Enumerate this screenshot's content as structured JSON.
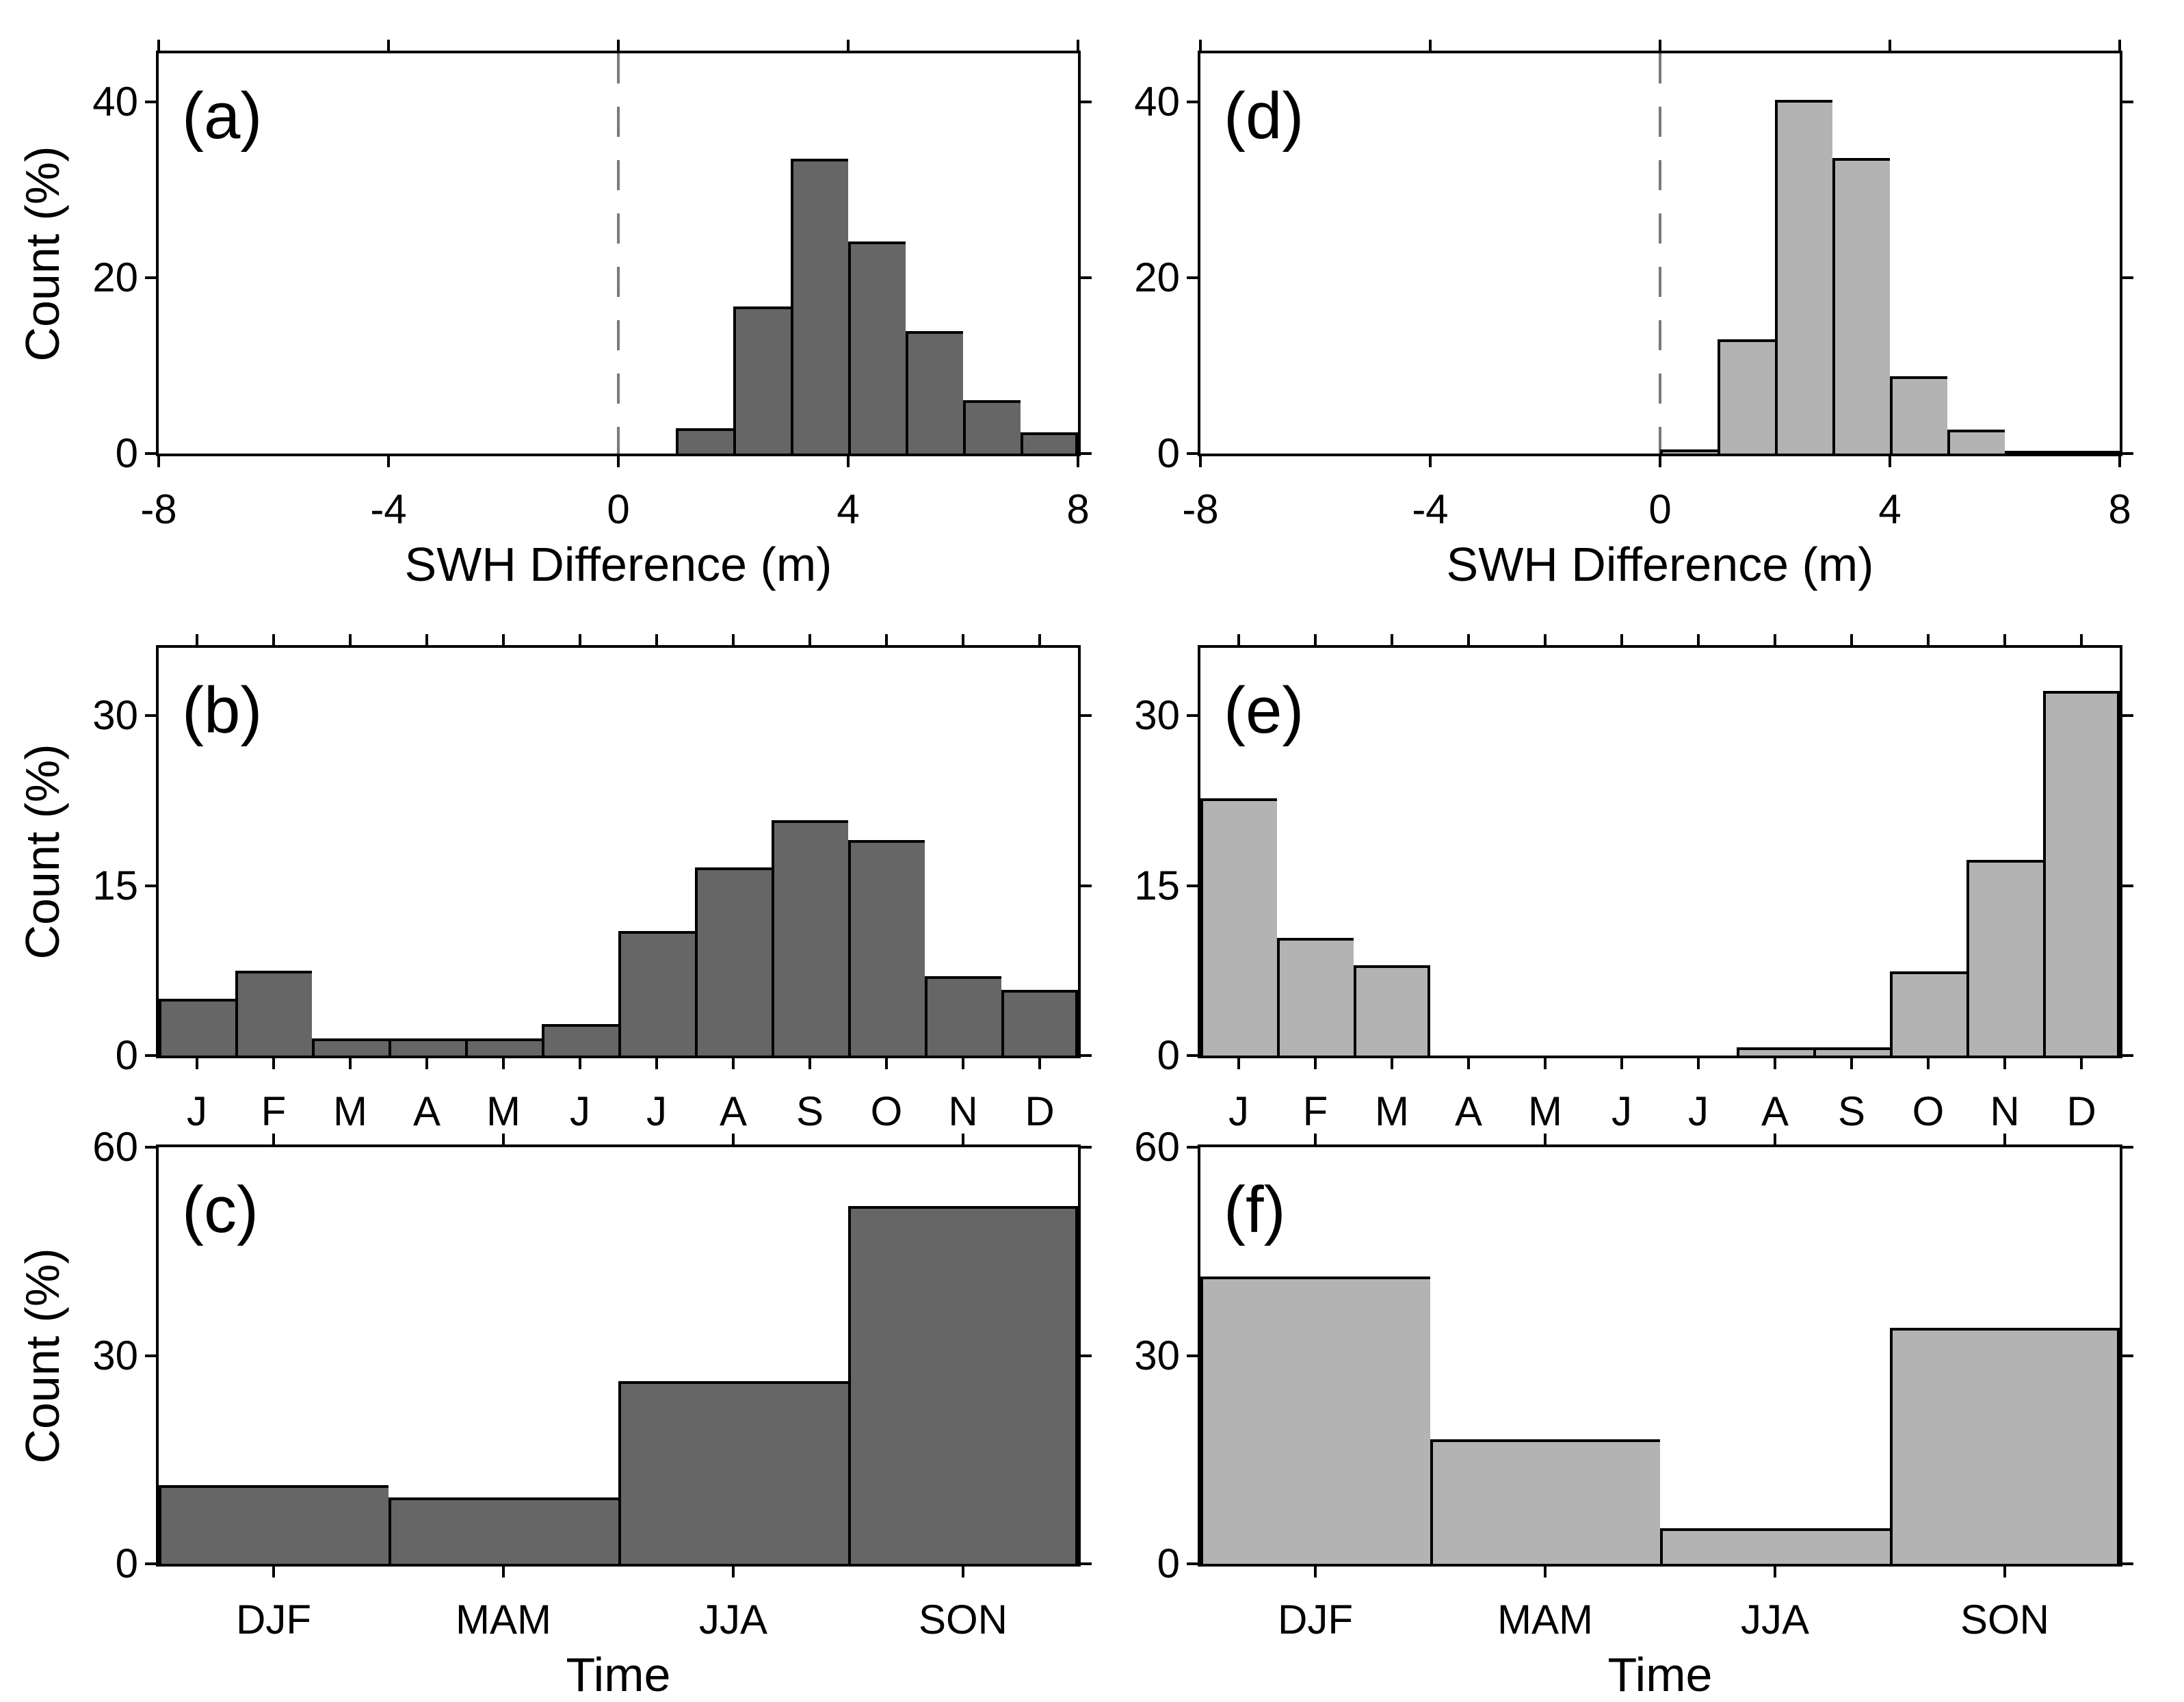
{
  "figure": {
    "background": "#ffffff",
    "axis_color": "#000000",
    "bar_dark": "#666666",
    "bar_light": "#b3b3b3",
    "refline_color": "#7a7a7a",
    "ylabel_shared": "Count (%)"
  },
  "chart_data": [
    {
      "panel": "(a)",
      "type": "bar",
      "style": "dark",
      "x_kind": "numeric",
      "bin_start": 1,
      "bin_width": 1,
      "values": [
        2.9,
        16.7,
        33.5,
        24.1,
        13.9,
        6.1,
        2.4
      ],
      "xlim": [
        -8,
        8
      ],
      "xticks": [
        -8,
        -4,
        0,
        4,
        8
      ],
      "ylim": [
        0,
        45.5
      ],
      "yticks": [
        0,
        20,
        40
      ],
      "xlabel": "SWH Difference (m)",
      "ylabel": "Count (%)",
      "ref_line_x": 0,
      "grid": false,
      "legend": "none"
    },
    {
      "panel": "(d)",
      "type": "bar",
      "style": "light",
      "x_kind": "numeric",
      "bin_start": 0,
      "bin_width": 1,
      "values": [
        0.5,
        13.0,
        40.2,
        33.6,
        8.8,
        2.7,
        0.3,
        0.3
      ],
      "xlim": [
        -8,
        8
      ],
      "xticks": [
        -8,
        -4,
        0,
        4,
        8
      ],
      "ylim": [
        0,
        45.5
      ],
      "yticks": [
        0,
        20,
        40
      ],
      "xlabel": "SWH Difference (m)",
      "ylabel": "",
      "ref_line_x": 0,
      "grid": false,
      "legend": "none"
    },
    {
      "panel": "(b)",
      "type": "bar",
      "style": "dark",
      "x_kind": "category",
      "categories": [
        "J",
        "F",
        "M",
        "A",
        "M",
        "J",
        "J",
        "A",
        "S",
        "O",
        "N",
        "D"
      ],
      "values": [
        5.0,
        7.5,
        1.5,
        1.5,
        1.5,
        2.8,
        11.0,
        16.6,
        20.8,
        19.0,
        7.0,
        5.8
      ],
      "ylim": [
        0,
        36
      ],
      "yticks": [
        0,
        15,
        30
      ],
      "xlabel": "",
      "ylabel": "Count (%)",
      "grid": false,
      "legend": "none"
    },
    {
      "panel": "(e)",
      "type": "bar",
      "style": "light",
      "x_kind": "category",
      "categories": [
        "J",
        "F",
        "M",
        "A",
        "M",
        "J",
        "J",
        "A",
        "S",
        "O",
        "N",
        "D"
      ],
      "values": [
        22.7,
        10.4,
        8.0,
        0,
        0,
        0,
        0,
        0.7,
        0.7,
        7.4,
        17.3,
        32.2
      ],
      "ylim": [
        0,
        36
      ],
      "yticks": [
        0,
        15,
        30
      ],
      "xlabel": "",
      "ylabel": "",
      "grid": false,
      "legend": "none"
    },
    {
      "panel": "(c)",
      "type": "bar",
      "style": "dark",
      "x_kind": "category",
      "categories": [
        "DJF",
        "MAM",
        "JJA",
        "SON"
      ],
      "values": [
        11.3,
        9.6,
        26.3,
        51.5
      ],
      "ylim": [
        0,
        60
      ],
      "yticks": [
        0,
        30,
        60
      ],
      "xlabel": "Time",
      "ylabel": "Count (%)",
      "grid": false,
      "legend": "none"
    },
    {
      "panel": "(f)",
      "type": "bar",
      "style": "light",
      "x_kind": "category",
      "categories": [
        "DJF",
        "MAM",
        "JJA",
        "SON"
      ],
      "values": [
        41.4,
        17.9,
        5.1,
        34.0
      ],
      "ylim": [
        0,
        60
      ],
      "yticks": [
        0,
        30,
        60
      ],
      "xlabel": "Time",
      "ylabel": "",
      "grid": false,
      "legend": "none"
    }
  ]
}
